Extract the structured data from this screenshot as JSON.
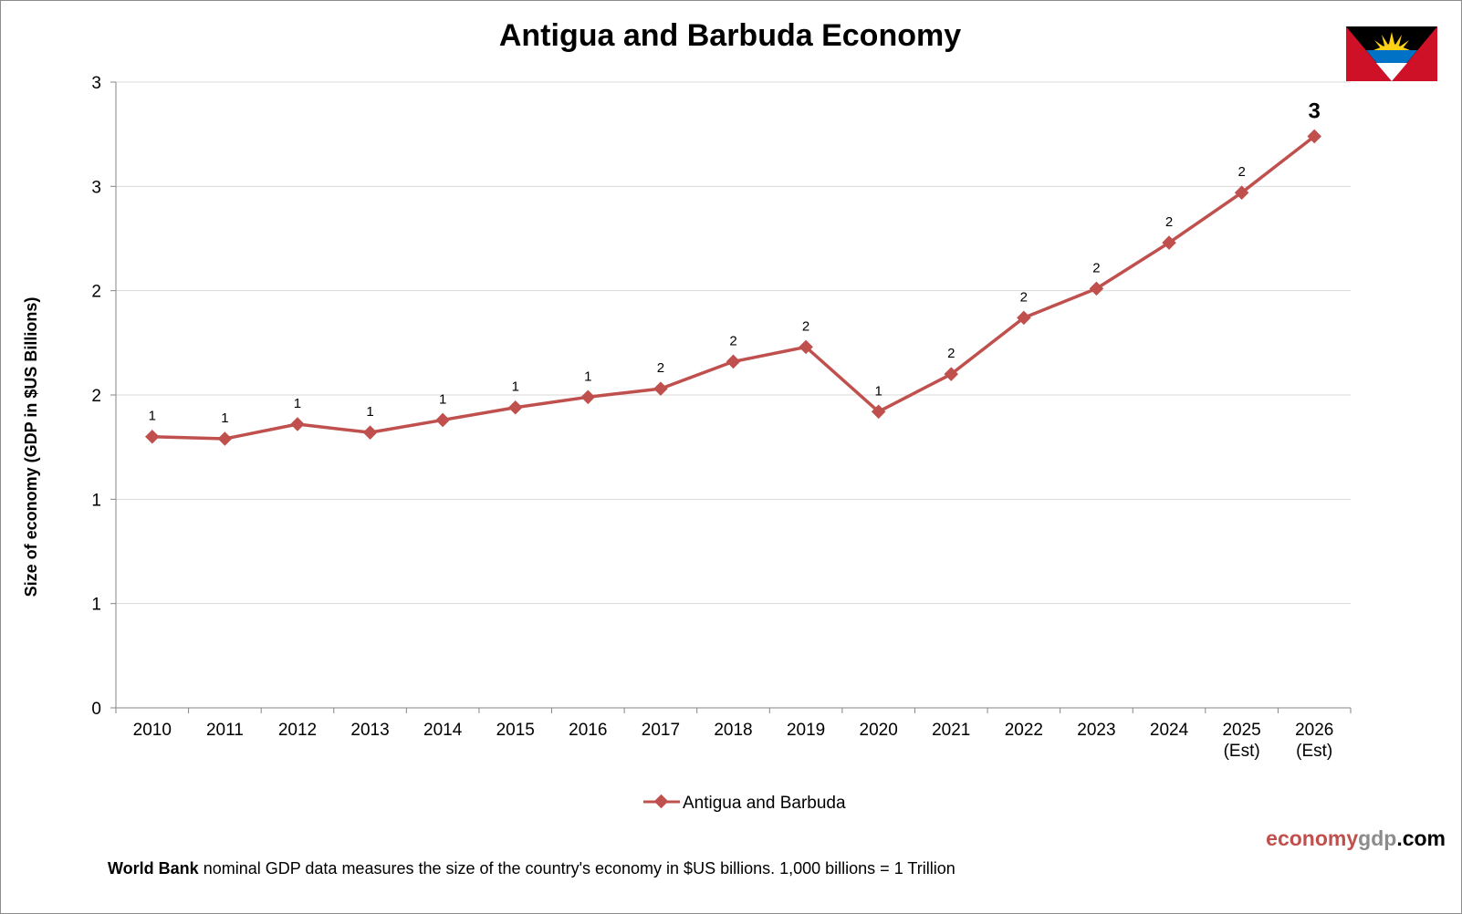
{
  "chart_data": {
    "type": "line",
    "title": "Antigua and Barbuda Economy",
    "ylabel": "Size of economy (GDP in $US Billions)",
    "xlabel": "",
    "categories": [
      "2010",
      "2011",
      "2012",
      "2013",
      "2014",
      "2015",
      "2016",
      "2017",
      "2018",
      "2019",
      "2020",
      "2021",
      "2022",
      "2023",
      "2024",
      "2025",
      "2026"
    ],
    "category_sublabels": [
      "",
      "",
      "",
      "",
      "",
      "",
      "",
      "",
      "",
      "",
      "",
      "",
      "",
      "",
      "",
      "(Est)",
      "(Est)"
    ],
    "y_tick_values": [
      0,
      0.5,
      1,
      1.5,
      2,
      2.5,
      3
    ],
    "y_tick_labels": [
      "0",
      "1",
      "1",
      "2",
      "2",
      "3",
      "3"
    ],
    "ylim": [
      0,
      3
    ],
    "grid": true,
    "legend_position": "bottom",
    "series": [
      {
        "name": "Antigua and Barbuda",
        "color": "#c0504d",
        "marker": "diamond",
        "values": [
          1.3,
          1.29,
          1.36,
          1.32,
          1.38,
          1.44,
          1.49,
          1.53,
          1.66,
          1.73,
          1.42,
          1.6,
          1.87,
          2.01,
          2.23,
          2.47,
          2.74
        ],
        "data_labels": [
          "1",
          "1",
          "1",
          "1",
          "1",
          "1",
          "1",
          "2",
          "2",
          "2",
          "1",
          "2",
          "2",
          "2",
          "2",
          "2",
          "3"
        ]
      }
    ]
  },
  "brand": {
    "part1": "economy",
    "part2": "gdp",
    "part3": ".com"
  },
  "footnote": {
    "source": "World Bank",
    "text": " nominal GDP data  measures the size of the country's economy in $US billions.  1,000 billions = 1 Trillion"
  },
  "flag": {
    "icon": "antigua-and-barbuda-flag-icon",
    "red": "#ce1126",
    "blue": "#0072c6",
    "black": "#000000",
    "sun": "#fcd116"
  }
}
